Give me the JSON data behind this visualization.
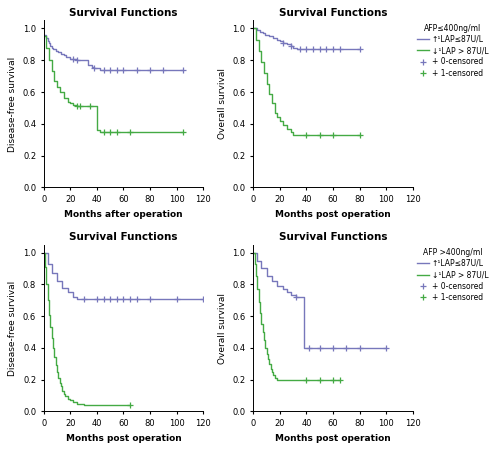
{
  "bg_color": "#ffffff",
  "panel_bg": "#ffffff",
  "blue_color": "#7777bb",
  "green_color": "#44aa44",
  "plots": [
    {
      "title": "Survival Functions",
      "xlabel": "Months after operation",
      "ylabel": "Disease-free survival",
      "xlim": [
        0,
        120
      ],
      "ylim": [
        0.0,
        1.05
      ],
      "xticks": [
        0,
        20,
        40,
        60,
        80,
        100,
        120
      ],
      "yticks": [
        0.0,
        0.2,
        0.4,
        0.6,
        0.8,
        1.0
      ],
      "blue_steps": [
        [
          0,
          0.96
        ],
        [
          2,
          0.94
        ],
        [
          3,
          0.92
        ],
        [
          4,
          0.91
        ],
        [
          5,
          0.89
        ],
        [
          6,
          0.88
        ],
        [
          7,
          0.87
        ],
        [
          9,
          0.86
        ],
        [
          11,
          0.85
        ],
        [
          13,
          0.84
        ],
        [
          15,
          0.83
        ],
        [
          17,
          0.82
        ],
        [
          20,
          0.81
        ],
        [
          22,
          0.81
        ],
        [
          25,
          0.8
        ],
        [
          28,
          0.8
        ],
        [
          33,
          0.77
        ],
        [
          36,
          0.76
        ],
        [
          38,
          0.75
        ],
        [
          40,
          0.75
        ],
        [
          42,
          0.74
        ],
        [
          45,
          0.74
        ],
        [
          50,
          0.74
        ],
        [
          55,
          0.74
        ],
        [
          60,
          0.74
        ],
        [
          70,
          0.74
        ],
        [
          80,
          0.74
        ],
        [
          90,
          0.74
        ],
        [
          105,
          0.74
        ]
      ],
      "blue_censored": [
        [
          22,
          0.81
        ],
        [
          25,
          0.8
        ],
        [
          38,
          0.75
        ],
        [
          45,
          0.74
        ],
        [
          50,
          0.74
        ],
        [
          55,
          0.74
        ],
        [
          60,
          0.74
        ],
        [
          70,
          0.74
        ],
        [
          80,
          0.74
        ],
        [
          90,
          0.74
        ],
        [
          105,
          0.74
        ]
      ],
      "green_steps": [
        [
          0,
          0.95
        ],
        [
          2,
          0.88
        ],
        [
          4,
          0.8
        ],
        [
          6,
          0.73
        ],
        [
          8,
          0.67
        ],
        [
          10,
          0.63
        ],
        [
          12,
          0.6
        ],
        [
          15,
          0.56
        ],
        [
          18,
          0.54
        ],
        [
          20,
          0.53
        ],
        [
          22,
          0.52
        ],
        [
          25,
          0.51
        ],
        [
          27,
          0.51
        ],
        [
          30,
          0.51
        ],
        [
          35,
          0.51
        ],
        [
          40,
          0.36
        ],
        [
          42,
          0.35
        ],
        [
          45,
          0.35
        ],
        [
          50,
          0.35
        ],
        [
          60,
          0.35
        ],
        [
          65,
          0.35
        ],
        [
          105,
          0.35
        ]
      ],
      "green_censored": [
        [
          25,
          0.51
        ],
        [
          27,
          0.51
        ],
        [
          35,
          0.51
        ],
        [
          45,
          0.35
        ],
        [
          50,
          0.35
        ],
        [
          55,
          0.35
        ],
        [
          65,
          0.35
        ],
        [
          105,
          0.35
        ]
      ],
      "has_legend": false
    },
    {
      "title": "Survival Functions",
      "xlabel": "Months post operation",
      "ylabel": "Overall survival",
      "xlim": [
        0,
        120
      ],
      "ylim": [
        0.0,
        1.05
      ],
      "xticks": [
        0,
        20,
        40,
        60,
        80,
        100,
        120
      ],
      "yticks": [
        0.0,
        0.2,
        0.4,
        0.6,
        0.8,
        1.0
      ],
      "blue_steps": [
        [
          0,
          1.0
        ],
        [
          3,
          0.99
        ],
        [
          5,
          0.98
        ],
        [
          7,
          0.97
        ],
        [
          9,
          0.96
        ],
        [
          12,
          0.95
        ],
        [
          15,
          0.94
        ],
        [
          18,
          0.93
        ],
        [
          20,
          0.92
        ],
        [
          22,
          0.91
        ],
        [
          25,
          0.9
        ],
        [
          28,
          0.89
        ],
        [
          30,
          0.88
        ],
        [
          33,
          0.87
        ],
        [
          35,
          0.87
        ],
        [
          40,
          0.87
        ],
        [
          45,
          0.87
        ],
        [
          50,
          0.87
        ],
        [
          55,
          0.87
        ],
        [
          60,
          0.87
        ],
        [
          65,
          0.87
        ],
        [
          80,
          0.87
        ]
      ],
      "blue_censored": [
        [
          22,
          0.91
        ],
        [
          28,
          0.89
        ],
        [
          35,
          0.87
        ],
        [
          40,
          0.87
        ],
        [
          45,
          0.87
        ],
        [
          50,
          0.87
        ],
        [
          55,
          0.87
        ],
        [
          60,
          0.87
        ],
        [
          65,
          0.87
        ],
        [
          80,
          0.87
        ]
      ],
      "green_steps": [
        [
          0,
          1.0
        ],
        [
          2,
          0.93
        ],
        [
          4,
          0.86
        ],
        [
          6,
          0.79
        ],
        [
          8,
          0.72
        ],
        [
          10,
          0.65
        ],
        [
          12,
          0.59
        ],
        [
          14,
          0.53
        ],
        [
          16,
          0.47
        ],
        [
          18,
          0.44
        ],
        [
          20,
          0.42
        ],
        [
          22,
          0.39
        ],
        [
          25,
          0.37
        ],
        [
          28,
          0.35
        ],
        [
          30,
          0.33
        ],
        [
          35,
          0.33
        ],
        [
          40,
          0.33
        ],
        [
          50,
          0.33
        ],
        [
          60,
          0.33
        ],
        [
          80,
          0.33
        ]
      ],
      "green_censored": [
        [
          40,
          0.33
        ],
        [
          50,
          0.33
        ],
        [
          60,
          0.33
        ],
        [
          80,
          0.33
        ]
      ],
      "has_legend": true,
      "legend_title": "AFP≤400ng/ml",
      "legend_items": [
        "↑¹LAP≤87U/L",
        "↓¹LAP > 87U/L",
        "+ 0-censored",
        "+ 1-censored"
      ]
    },
    {
      "title": "Survival Functions",
      "xlabel": "Months post operation",
      "ylabel": "Disease-free survival",
      "xlim": [
        0,
        120
      ],
      "ylim": [
        0.0,
        1.05
      ],
      "xticks": [
        0,
        20,
        40,
        60,
        80,
        100,
        120
      ],
      "yticks": [
        0.0,
        0.2,
        0.4,
        0.6,
        0.8,
        1.0
      ],
      "blue_steps": [
        [
          0,
          1.0
        ],
        [
          3,
          0.93
        ],
        [
          6,
          0.87
        ],
        [
          10,
          0.82
        ],
        [
          14,
          0.78
        ],
        [
          18,
          0.75
        ],
        [
          22,
          0.72
        ],
        [
          25,
          0.71
        ],
        [
          30,
          0.71
        ],
        [
          40,
          0.71
        ],
        [
          50,
          0.71
        ],
        [
          60,
          0.71
        ],
        [
          70,
          0.71
        ],
        [
          80,
          0.71
        ],
        [
          100,
          0.71
        ],
        [
          120,
          0.71
        ]
      ],
      "blue_censored": [
        [
          30,
          0.71
        ],
        [
          40,
          0.71
        ],
        [
          45,
          0.71
        ],
        [
          50,
          0.71
        ],
        [
          55,
          0.71
        ],
        [
          60,
          0.71
        ],
        [
          65,
          0.71
        ],
        [
          70,
          0.71
        ],
        [
          80,
          0.71
        ],
        [
          100,
          0.71
        ],
        [
          120,
          0.71
        ]
      ],
      "green_steps": [
        [
          0,
          1.0
        ],
        [
          1,
          0.91
        ],
        [
          2,
          0.8
        ],
        [
          3,
          0.7
        ],
        [
          4,
          0.61
        ],
        [
          5,
          0.53
        ],
        [
          6,
          0.46
        ],
        [
          7,
          0.4
        ],
        [
          8,
          0.34
        ],
        [
          9,
          0.29
        ],
        [
          10,
          0.25
        ],
        [
          11,
          0.21
        ],
        [
          12,
          0.18
        ],
        [
          13,
          0.16
        ],
        [
          14,
          0.13
        ],
        [
          15,
          0.11
        ],
        [
          16,
          0.1
        ],
        [
          18,
          0.08
        ],
        [
          20,
          0.07
        ],
        [
          22,
          0.06
        ],
        [
          25,
          0.05
        ],
        [
          30,
          0.04
        ],
        [
          35,
          0.04
        ],
        [
          45,
          0.04
        ],
        [
          60,
          0.04
        ],
        [
          65,
          0.04
        ]
      ],
      "green_censored": [
        [
          65,
          0.04
        ]
      ],
      "has_legend": false
    },
    {
      "title": "Survival Functions",
      "xlabel": "Months post operation",
      "ylabel": "Overall survival",
      "xlim": [
        0,
        120
      ],
      "ylim": [
        0.0,
        1.05
      ],
      "xticks": [
        0,
        20,
        40,
        60,
        80,
        100,
        120
      ],
      "yticks": [
        0.0,
        0.2,
        0.4,
        0.6,
        0.8,
        1.0
      ],
      "blue_steps": [
        [
          0,
          1.0
        ],
        [
          3,
          0.95
        ],
        [
          6,
          0.9
        ],
        [
          10,
          0.85
        ],
        [
          14,
          0.82
        ],
        [
          18,
          0.79
        ],
        [
          22,
          0.77
        ],
        [
          25,
          0.75
        ],
        [
          28,
          0.73
        ],
        [
          32,
          0.72
        ],
        [
          38,
          0.4
        ],
        [
          42,
          0.4
        ],
        [
          50,
          0.4
        ],
        [
          60,
          0.4
        ],
        [
          80,
          0.4
        ],
        [
          100,
          0.4
        ]
      ],
      "blue_censored": [
        [
          32,
          0.72
        ],
        [
          42,
          0.4
        ],
        [
          50,
          0.4
        ],
        [
          60,
          0.4
        ],
        [
          70,
          0.4
        ],
        [
          80,
          0.4
        ],
        [
          100,
          0.4
        ]
      ],
      "green_steps": [
        [
          0,
          1.0
        ],
        [
          1,
          0.93
        ],
        [
          2,
          0.85
        ],
        [
          3,
          0.77
        ],
        [
          4,
          0.69
        ],
        [
          5,
          0.62
        ],
        [
          6,
          0.55
        ],
        [
          7,
          0.5
        ],
        [
          8,
          0.45
        ],
        [
          9,
          0.4
        ],
        [
          10,
          0.36
        ],
        [
          11,
          0.33
        ],
        [
          12,
          0.3
        ],
        [
          13,
          0.27
        ],
        [
          14,
          0.25
        ],
        [
          15,
          0.23
        ],
        [
          16,
          0.21
        ],
        [
          18,
          0.2
        ],
        [
          20,
          0.2
        ],
        [
          22,
          0.2
        ],
        [
          25,
          0.2
        ],
        [
          30,
          0.2
        ],
        [
          35,
          0.2
        ],
        [
          40,
          0.2
        ],
        [
          50,
          0.2
        ],
        [
          60,
          0.2
        ],
        [
          65,
          0.2
        ]
      ],
      "green_censored": [
        [
          40,
          0.2
        ],
        [
          50,
          0.2
        ],
        [
          60,
          0.2
        ],
        [
          65,
          0.2
        ]
      ],
      "has_legend": true,
      "legend_title": "AFP >400ng/ml",
      "legend_items": [
        "↑¹LAP≤87U/L",
        "↓¹LAP > 87U/L",
        "+ 0-censored",
        "+ 1-censored"
      ]
    }
  ]
}
